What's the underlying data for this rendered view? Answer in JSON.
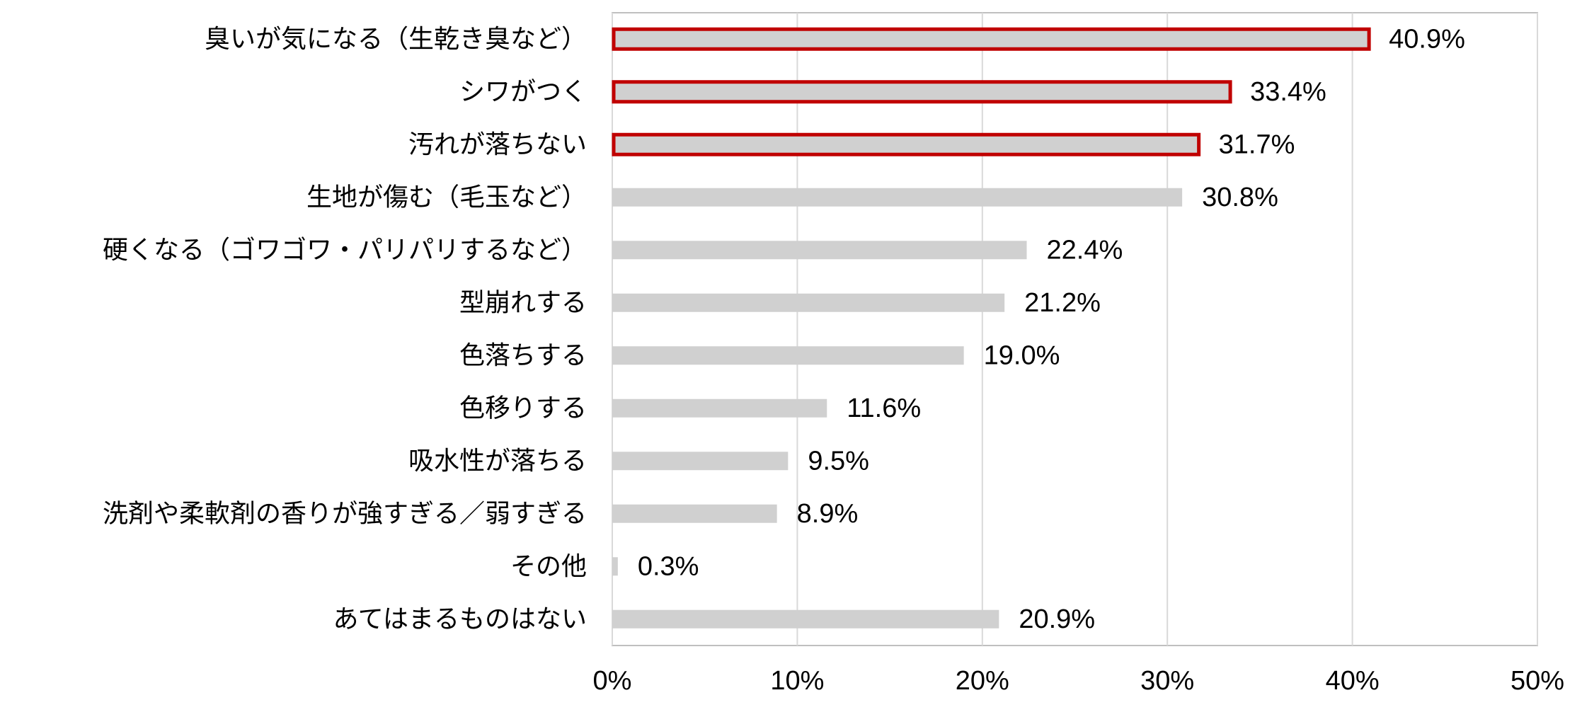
{
  "chart_data": {
    "type": "bar",
    "orientation": "horizontal",
    "categories": [
      "臭いが気になる（生乾き臭など）",
      "シワがつく",
      "汚れが落ちない",
      "生地が傷む（毛玉など）",
      "硬くなる（ゴワゴワ・パリパリするなど）",
      "型崩れする",
      "色落ちする",
      "色移りする",
      "吸水性が落ちる",
      "洗剤や柔軟剤の香りが強すぎる／弱すぎる",
      "その他",
      "あてはまるものはない"
    ],
    "values": [
      40.9,
      33.4,
      31.7,
      30.8,
      22.4,
      21.2,
      19.0,
      11.6,
      9.5,
      8.9,
      0.3,
      20.9
    ],
    "value_labels": [
      "40.9%",
      "33.4%",
      "31.7%",
      "30.8%",
      "22.4%",
      "21.2%",
      "19.0%",
      "11.6%",
      "9.5%",
      "8.9%",
      "0.3%",
      "20.9%"
    ],
    "highlighted": [
      true,
      true,
      true,
      false,
      false,
      false,
      false,
      false,
      false,
      false,
      false,
      false
    ],
    "xlim": [
      0,
      50
    ],
    "x_ticks": [
      0,
      10,
      20,
      30,
      40,
      50
    ],
    "x_tick_labels": [
      "0%",
      "10%",
      "20%",
      "30%",
      "40%",
      "50%"
    ],
    "grid": true,
    "legend": "none",
    "colors": {
      "bar_fill": "#d0d0d0",
      "highlight_stroke": "#c00000",
      "grid": "#d9d9d9",
      "axis": "#bfbfbf"
    }
  }
}
